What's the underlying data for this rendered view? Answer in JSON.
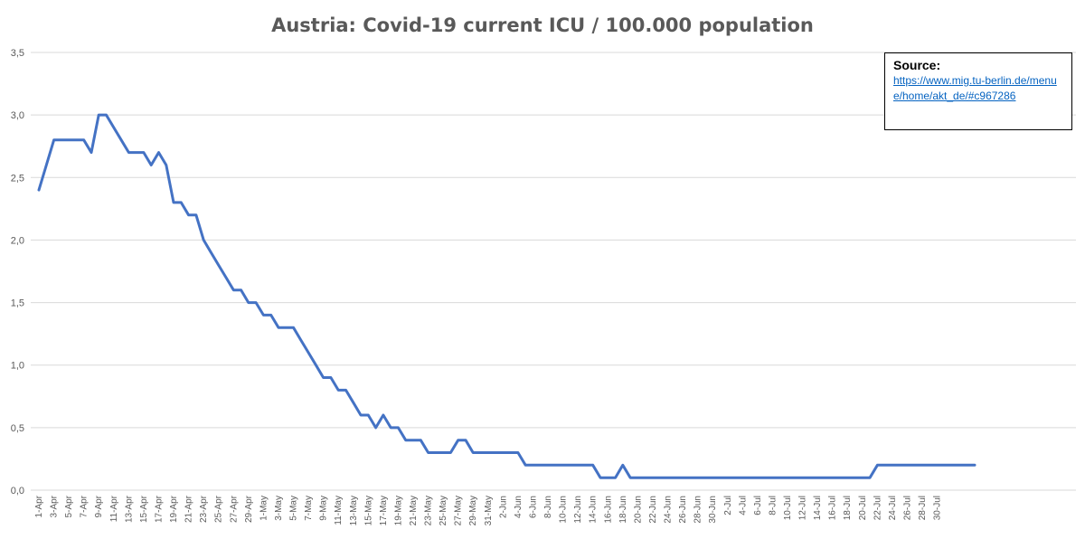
{
  "chart_data": {
    "type": "line",
    "title": "Austria: Covid-19 current ICU / 100.000 population",
    "xlabel": "",
    "ylabel": "",
    "ylim": [
      0,
      3.5
    ],
    "yticks": [
      "0,0",
      "0,5",
      "1,0",
      "1,5",
      "2,0",
      "2,5",
      "3,0",
      "3,5"
    ],
    "grid": true,
    "legend": "none",
    "color": "#4472c4",
    "x_tick_labels": [
      "1-Apr",
      "3-Apr",
      "5-Apr",
      "7-Apr",
      "9-Apr",
      "11-Apr",
      "13-Apr",
      "15-Apr",
      "17-Apr",
      "19-Apr",
      "21-Apr",
      "23-Apr",
      "25-Apr",
      "27-Apr",
      "29-Apr",
      "1-May",
      "3-May",
      "5-May",
      "7-May",
      "9-May",
      "11-May",
      "13-May",
      "15-May",
      "17-May",
      "19-May",
      "21-May",
      "23-May",
      "25-May",
      "27-May",
      "29-May",
      "31-May",
      "2-Jun",
      "4-Jun",
      "6-Jun",
      "8-Jun",
      "10-Jun",
      "12-Jun",
      "14-Jun",
      "16-Jun",
      "18-Jun",
      "20-Jun",
      "22-Jun",
      "24-Jun",
      "26-Jun",
      "28-Jun",
      "30-Jun",
      "2-Jul",
      "4-Jul",
      "6-Jul",
      "8-Jul",
      "10-Jul",
      "12-Jul",
      "14-Jul",
      "16-Jul",
      "18-Jul",
      "20-Jul",
      "22-Jul",
      "24-Jul",
      "26-Jul",
      "28-Jul",
      "30-Jul"
    ],
    "series": [
      {
        "values": [
          2.4,
          2.6,
          2.8,
          2.8,
          2.8,
          2.8,
          2.8,
          2.7,
          3.0,
          3.0,
          2.9,
          2.8,
          2.7,
          2.7,
          2.7,
          2.6,
          2.7,
          2.6,
          2.3,
          2.3,
          2.2,
          2.2,
          2.0,
          1.9,
          1.8,
          1.7,
          1.6,
          1.6,
          1.5,
          1.5,
          1.4,
          1.4,
          1.3,
          1.3,
          1.3,
          1.2,
          1.1,
          1.0,
          0.9,
          0.9,
          0.8,
          0.8,
          0.7,
          0.6,
          0.6,
          0.5,
          0.6,
          0.5,
          0.5,
          0.4,
          0.4,
          0.4,
          0.3,
          0.3,
          0.3,
          0.3,
          0.4,
          0.4,
          0.3,
          0.3,
          0.3,
          0.3,
          0.3,
          0.3,
          0.3,
          0.2,
          0.2,
          0.2,
          0.2,
          0.2,
          0.2,
          0.2,
          0.2,
          0.2,
          0.2,
          0.1,
          0.1,
          0.1,
          0.2,
          0.1,
          0.1,
          0.1,
          0.1,
          0.1,
          0.1,
          0.1,
          0.1,
          0.1,
          0.1,
          0.1,
          0.1,
          0.1,
          0.1,
          0.1,
          0.1,
          0.1,
          0.1,
          0.1,
          0.1,
          0.1,
          0.1,
          0.1,
          0.1,
          0.1,
          0.1,
          0.1,
          0.1,
          0.1,
          0.1,
          0.1,
          0.1,
          0.1,
          0.2,
          0.2,
          0.2,
          0.2,
          0.2,
          0.2,
          0.2,
          0.2,
          0.2,
          0.2,
          0.2,
          0.2,
          0.2,
          0.2
        ]
      }
    ]
  },
  "source": {
    "title": "Source:",
    "link": "https://www.mig.tu-berlin.de/menue/home/akt_de/#c967286"
  }
}
